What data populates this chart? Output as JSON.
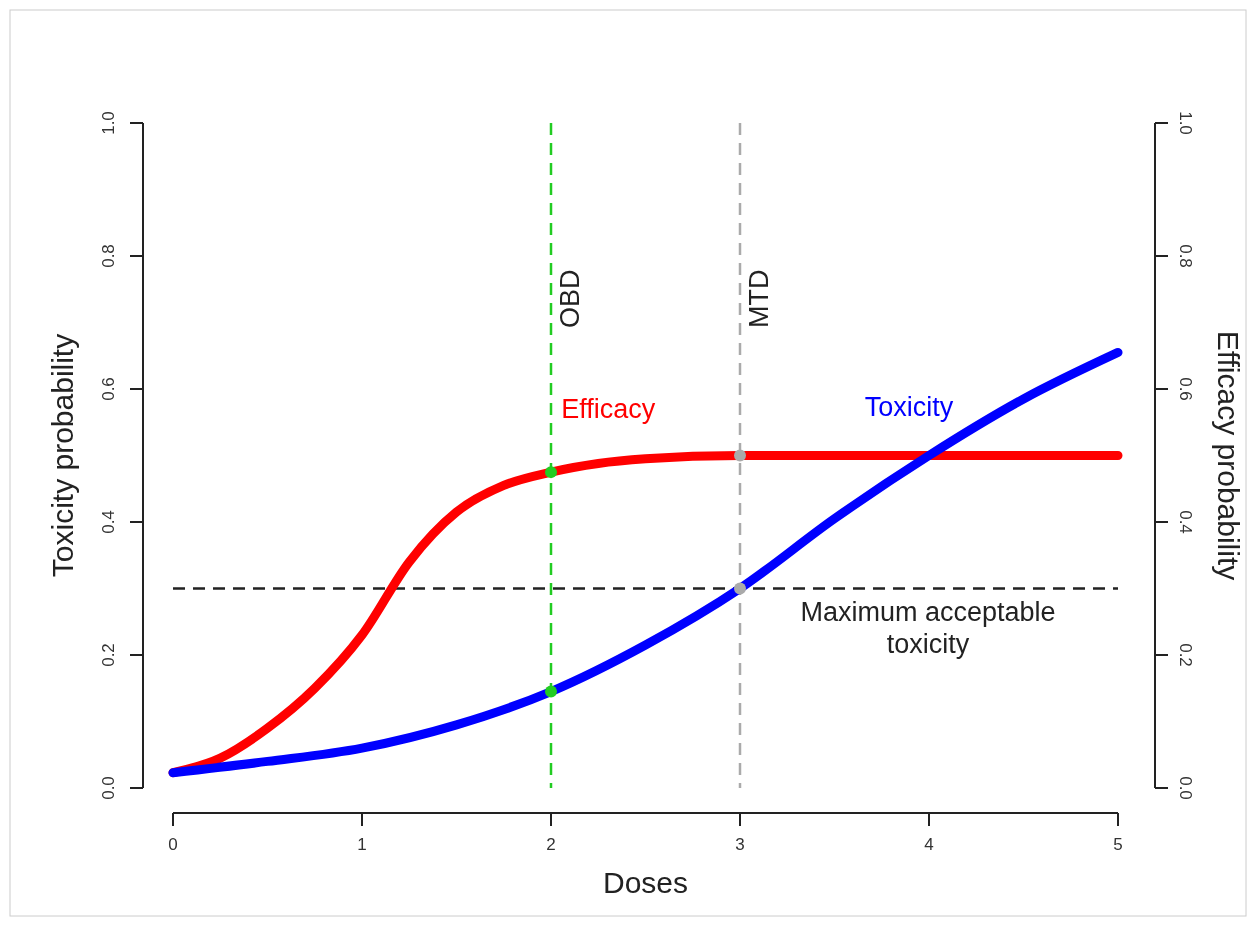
{
  "chart_data": {
    "type": "line",
    "xlabel": "Doses",
    "ylabel": "Toxicity probability",
    "y2label": "Efficacy probability",
    "xlim": [
      0,
      5
    ],
    "xticks": [
      0,
      1,
      2,
      3,
      4,
      5
    ],
    "ylim": [
      0,
      1
    ],
    "yticks": [
      {
        "value": 0,
        "label": "0.0"
      },
      0.2,
      0.4,
      0.6,
      0.8,
      {
        "value": 1,
        "label": "1.0"
      }
    ],
    "y2lim": [
      0,
      1
    ],
    "y2ticks": [
      {
        "value": 0,
        "label": "0.0"
      },
      0.2,
      0.4,
      0.6,
      0.8,
      {
        "value": 1,
        "label": "1.0"
      }
    ],
    "grid": false,
    "line_style": "solid",
    "series": [
      {
        "name": "Efficacy",
        "color": "#ff0000",
        "x": [
          0,
          0.25,
          0.5,
          0.75,
          1,
          1.25,
          1.5,
          1.75,
          2,
          2.25,
          2.5,
          3,
          3.5,
          4,
          4.5,
          5
        ],
        "values": [
          0.023,
          0.045,
          0.09,
          0.15,
          0.23,
          0.34,
          0.415,
          0.455,
          0.475,
          0.488,
          0.495,
          0.5,
          0.5,
          0.5,
          0.5,
          0.5
        ]
      },
      {
        "name": "Toxicity",
        "color": "#0000ff",
        "x": [
          0,
          0.5,
          1,
          1.5,
          2,
          2.5,
          3,
          3.5,
          4,
          4.5,
          5
        ],
        "values": [
          0.023,
          0.04,
          0.06,
          0.095,
          0.145,
          0.215,
          0.3,
          0.405,
          0.5,
          0.585,
          0.655
        ]
      },
      {
        "type": "scatter",
        "color": "#22cc22",
        "marker": "circle",
        "x": [
          2,
          2
        ],
        "values": [
          0.475,
          0.145
        ]
      },
      {
        "type": "scatter",
        "color": "#aaaaaa",
        "marker": "circle",
        "x": [
          3,
          3
        ],
        "values": [
          0.5,
          0.3
        ]
      }
    ],
    "ref_lines": [
      {
        "axis": "y",
        "value": 0.3,
        "label": "Maximum acceptable toxicity",
        "color": "#222222",
        "line_style": "dashed"
      },
      {
        "axis": "x",
        "value": 2,
        "label": "OBD",
        "color": "#22cc22",
        "line_style": "dashed"
      },
      {
        "axis": "x",
        "value": 3,
        "label": "MTD",
        "color": "#aaaaaa",
        "line_style": "dashed"
      }
    ]
  }
}
